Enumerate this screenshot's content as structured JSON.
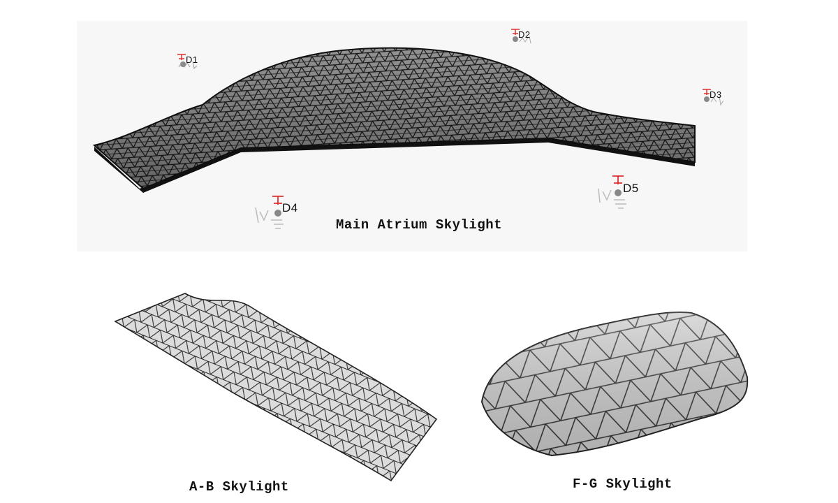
{
  "main": {
    "caption": "Main Atrium Skylight",
    "markers": [
      {
        "id": "D1",
        "label": "D1"
      },
      {
        "id": "D2",
        "label": "D2"
      },
      {
        "id": "D3",
        "label": "D3"
      },
      {
        "id": "D4",
        "label": "D4"
      },
      {
        "id": "D5",
        "label": "D5"
      }
    ],
    "marker_color": "#e03030"
  },
  "ab": {
    "caption": "A-B Skylight"
  },
  "fg": {
    "caption": "F-G Skylight"
  },
  "colors": {
    "frame_dark": "#1c1c1c",
    "glass_light": "#c8c8c8",
    "background_panel": "#f7f7f7"
  }
}
